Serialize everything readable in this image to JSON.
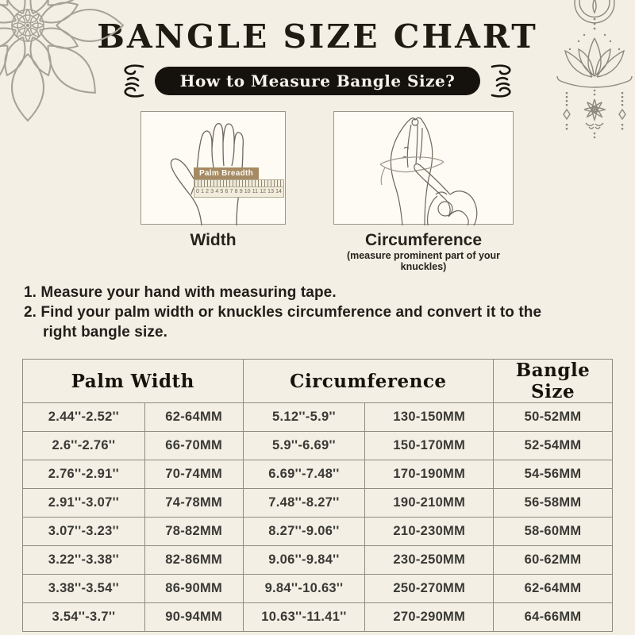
{
  "title": "BANGLE SIZE CHART",
  "badge": {
    "label": "How to Measure Bangle Size?"
  },
  "measure": {
    "width": {
      "caption": "Width",
      "tape_label": "Palm Breadth",
      "ruler_numbers": [
        "0",
        "1",
        "2",
        "3",
        "4",
        "5",
        "6",
        "7",
        "8",
        "9",
        "10",
        "11",
        "12",
        "13",
        "14"
      ]
    },
    "circumference": {
      "caption": "Circumference",
      "note": "(measure prominent part of your knuckles)"
    }
  },
  "instructions": [
    "1. Measure your hand with measuring tape.",
    "2. Find your palm width or knuckles circumference and convert it to the",
    "right bangle size."
  ],
  "table": {
    "group_headers": [
      "Palm Width",
      "Circumference",
      "Bangle Size"
    ],
    "rows": [
      [
        "2.44''-2.52''",
        "62-64MM",
        "5.12''-5.9''",
        "130-150MM",
        "50-52MM"
      ],
      [
        "2.6''-2.76''",
        "66-70MM",
        "5.9''-6.69''",
        "150-170MM",
        "52-54MM"
      ],
      [
        "2.76''-2.91''",
        "70-74MM",
        "6.69''-7.48''",
        "170-190MM",
        "54-56MM"
      ],
      [
        "2.91''-3.07''",
        "74-78MM",
        "7.48''-8.27''",
        "190-210MM",
        "56-58MM"
      ],
      [
        "3.07''-3.23''",
        "78-82MM",
        "8.27''-9.06''",
        "210-230MM",
        "58-60MM"
      ],
      [
        "3.22''-3.38''",
        "82-86MM",
        "9.06''-9.84''",
        "230-250MM",
        "60-62MM"
      ],
      [
        "3.38''-3.54''",
        "86-90MM",
        "9.84''-10.63''",
        "250-270MM",
        "62-64MM"
      ],
      [
        "3.54''-3.7''",
        "90-94MM",
        "10.63''-11.41''",
        "270-290MM",
        "64-66MM"
      ]
    ]
  },
  "colors": {
    "background": "#f3efe4",
    "ink": "#1f1b13",
    "badge_bg": "#15120d",
    "badge_text": "#f6f3ea",
    "table_border": "#8f8b80",
    "tape_label_bg": "#a58a63",
    "ornament_gray": "#a6a298"
  }
}
